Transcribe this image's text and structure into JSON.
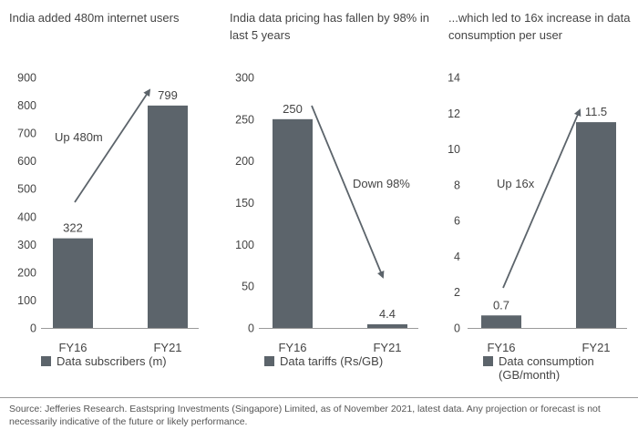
{
  "colors": {
    "bar": "#5c646b",
    "axis": "#9a9a9a",
    "arrow": "#5c646b",
    "text": "#444444"
  },
  "chart_data": [
    {
      "type": "bar",
      "title": "India added 480m internet users",
      "categories": [
        "FY16",
        "FY21"
      ],
      "values": [
        322,
        799
      ],
      "data_labels": [
        "322",
        "799"
      ],
      "ylim": [
        0,
        900
      ],
      "yticks": [
        0,
        100,
        200,
        300,
        400,
        500,
        600,
        700,
        800,
        900
      ],
      "legend": "Data subscribers (m)",
      "annotation": "Up 480m",
      "arrow": "up"
    },
    {
      "type": "bar",
      "title": "India data pricing has fallen by 98% in last 5 years",
      "categories": [
        "FY16",
        "FY21"
      ],
      "values": [
        250,
        4.4
      ],
      "data_labels": [
        "250",
        "4.4"
      ],
      "ylim": [
        0,
        300
      ],
      "yticks": [
        0,
        50,
        100,
        150,
        200,
        250,
        300
      ],
      "legend": "Data tariffs (Rs/GB)",
      "annotation": "Down 98%",
      "arrow": "down"
    },
    {
      "type": "bar",
      "title": "...which led to 16x increase in data consumption per user",
      "categories": [
        "FY16",
        "FY21"
      ],
      "values": [
        0.7,
        11.5
      ],
      "data_labels": [
        "0.7",
        "11.5"
      ],
      "ylim": [
        0,
        14
      ],
      "yticks": [
        0,
        2,
        4,
        6,
        8,
        10,
        12,
        14
      ],
      "legend": [
        "Data consumption",
        "(GB/month)"
      ],
      "annotation": "Up 16x",
      "arrow": "up"
    }
  ],
  "titles": [
    "India added 480m internet users",
    "India data pricing has fallen by 98% in last 5 years",
    "...which led to 16x increase in data consumption per user"
  ],
  "footer": "Source: Jefferies Research. Eastspring Investments (Singapore) Limited, as of November 2021, latest data. Any projection or forecast is not necessarily indicative of the future or likely performance."
}
